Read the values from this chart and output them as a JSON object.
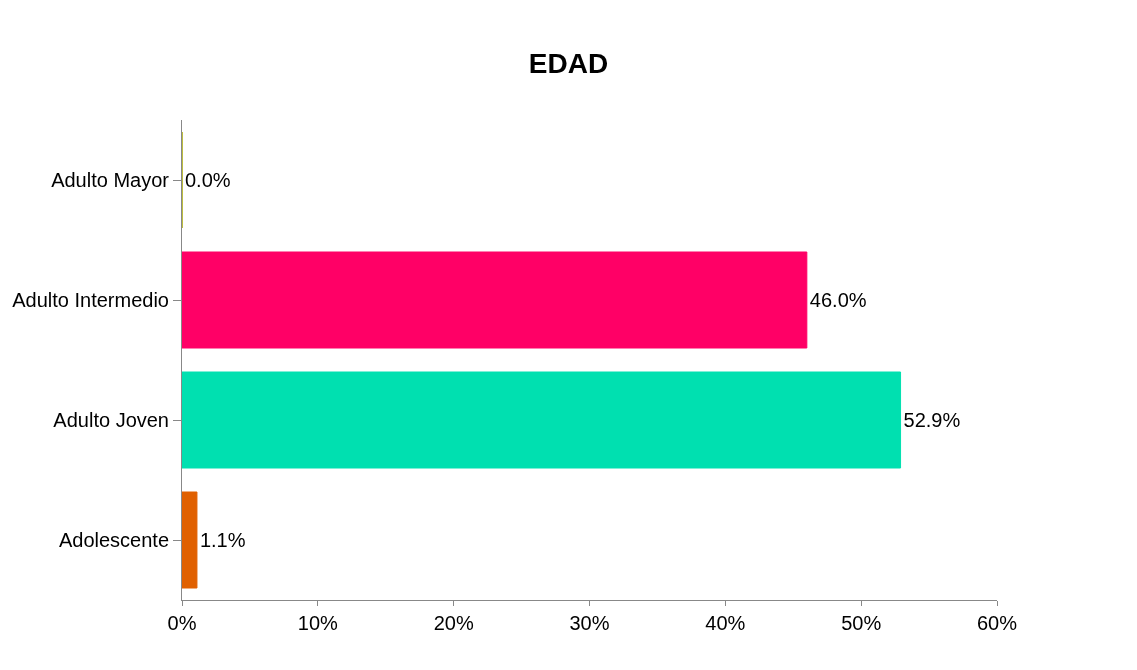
{
  "chart_data": {
    "type": "bar",
    "orientation": "horizontal",
    "title": "EDAD",
    "categories": [
      "Adulto Mayor",
      "Adulto Intermedio",
      "Adulto Joven",
      "Adolescente"
    ],
    "values": [
      0.0,
      46.0,
      52.9,
      1.1
    ],
    "colors": [
      "#a8a800",
      "#ff0066",
      "#00e0b0",
      "#e06000"
    ],
    "value_labels": [
      "0.0%",
      "46.0%",
      "52.9%",
      "1.1%"
    ],
    "xlim": [
      0,
      60
    ],
    "xticks": [
      {
        "value": 0,
        "label": "0%"
      },
      {
        "value": 10,
        "label": "10%"
      },
      {
        "value": 20,
        "label": "20%"
      },
      {
        "value": 30,
        "label": "30%"
      },
      {
        "value": 40,
        "label": "40%"
      },
      {
        "value": 50,
        "label": "50%"
      },
      {
        "value": 60,
        "label": "60%"
      }
    ],
    "grid": false
  }
}
